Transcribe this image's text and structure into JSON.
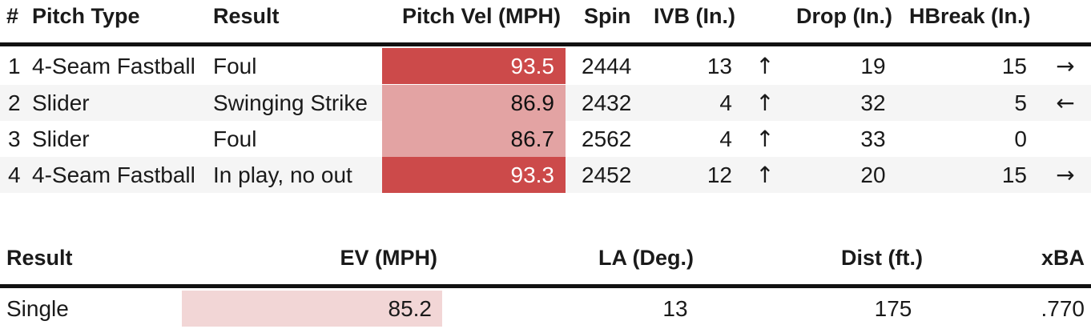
{
  "pitch_table": {
    "headers": {
      "num": "#",
      "pitch_type": "Pitch Type",
      "result": "Result",
      "pitch_vel": "Pitch Vel (MPH)",
      "spin": "Spin",
      "ivb": "IVB (In.)",
      "drop": "Drop (In.)",
      "hbreak": "HBreak (In.)"
    },
    "rows": [
      {
        "num": "1",
        "pitch_type": "4-Seam Fastball",
        "result": "Foul",
        "pitch_vel": "93.5",
        "vel_color": "#cc4a4a",
        "spin": "2444",
        "ivb": "13",
        "ivb_arrow": "↑",
        "drop": "19",
        "hbreak": "15",
        "hbreak_arrow": "→"
      },
      {
        "num": "2",
        "pitch_type": "Slider",
        "result": "Swinging Strike",
        "pitch_vel": "86.9",
        "vel_color": "#e3a3a3",
        "spin": "2432",
        "ivb": "4",
        "ivb_arrow": "↑",
        "drop": "32",
        "hbreak": "5",
        "hbreak_arrow": "←"
      },
      {
        "num": "3",
        "pitch_type": "Slider",
        "result": "Foul",
        "pitch_vel": "86.7",
        "vel_color": "#e3a3a3",
        "spin": "2562",
        "ivb": "4",
        "ivb_arrow": "↑",
        "drop": "33",
        "hbreak": "0",
        "hbreak_arrow": ""
      },
      {
        "num": "4",
        "pitch_type": "4-Seam Fastball",
        "result": "In play, no out",
        "pitch_vel": "93.3",
        "vel_color": "#cc4a4a",
        "spin": "2452",
        "ivb": "12",
        "ivb_arrow": "↑",
        "drop": "20",
        "hbreak": "15",
        "hbreak_arrow": "→"
      }
    ]
  },
  "batted_table": {
    "headers": {
      "result": "Result",
      "ev": "EV (MPH)",
      "la": "LA (Deg.)",
      "dist": "Dist (ft.)",
      "xba": "xBA"
    },
    "rows": [
      {
        "result": "Single",
        "ev": "85.2",
        "ev_color": "#f2d6d6",
        "la": "13",
        "dist": "175",
        "xba": ".770"
      }
    ]
  }
}
